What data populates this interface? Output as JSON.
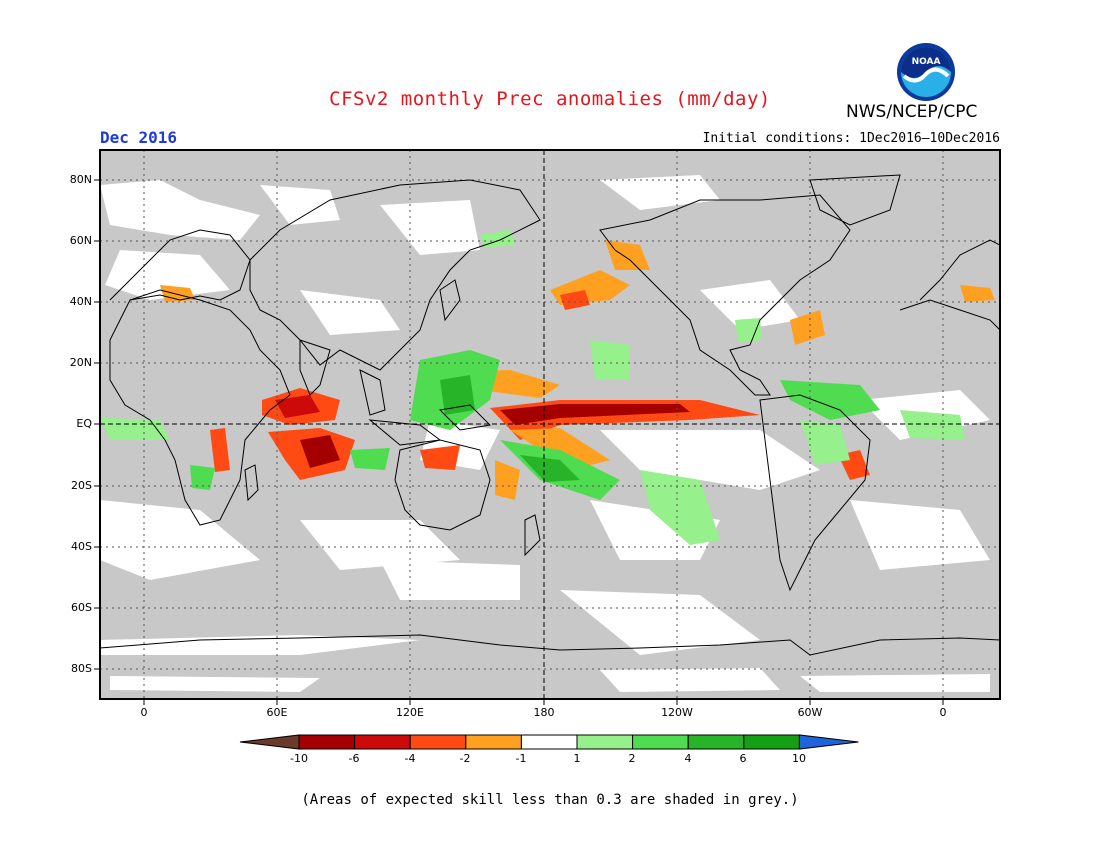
{
  "title": "CFSv2 monthly Prec anomalies (mm/day)",
  "agency": "NWS/NCEP/CPC",
  "logo_text": "NOAA",
  "month_label": "Dec 2016",
  "initial_conditions": "Initial conditions: 1Dec2016—10Dec2016",
  "lat_labels": [
    "80N",
    "60N",
    "40N",
    "20N",
    "EQ",
    "20S",
    "40S",
    "60S",
    "80S"
  ],
  "lon_labels": [
    "0",
    "60E",
    "120E",
    "180",
    "120W",
    "60W",
    "0"
  ],
  "colorbar": {
    "labels": [
      "-10",
      "-6",
      "-4",
      "-2",
      "-1",
      "1",
      "2",
      "4",
      "6",
      "10"
    ],
    "colors": [
      "#6b3a2a",
      "#a50000",
      "#cc0a0a",
      "#ff4a14",
      "#ffa020",
      "#ffffff",
      "#96f08c",
      "#50dc50",
      "#28b428",
      "#14a014",
      "#1e64dc"
    ]
  },
  "colors": {
    "skill_grey": "#c8c8c8",
    "coast": "#000000",
    "title_red": "#e8141c",
    "month_blue": "#1e3cd2"
  },
  "footnote": "(Areas of expected skill less than 0.3 are shaded in grey.)"
}
